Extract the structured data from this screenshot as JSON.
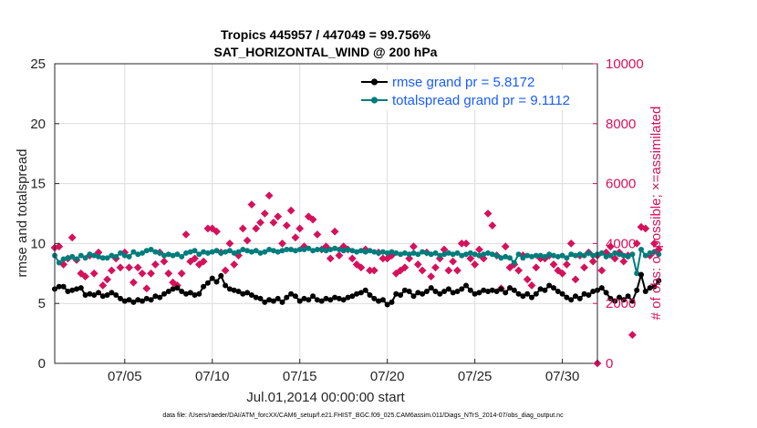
{
  "chart_data": {
    "type": "line",
    "title": "Tropics 445957 / 447049 = 99.756%",
    "subtitle": "SAT_HORIZONTAL_WIND @ 200 hPa",
    "xlabel": "Jul.01,2014 00:00:00 start",
    "ylabel": "rmse and totalspread",
    "ylabel_right": "# of obs: o=possible; ×=assimilated",
    "footnote": "data file: /Users/raeder/DAI/ATM_forcXX/CAM6_setup/f.e21.FHIST_BGC.f09_025.CAM6assim.011/Diags_NTrS_2014-07/obs_diag_output.nc",
    "xlim": [
      1,
      32
    ],
    "ylim": [
      0,
      25
    ],
    "ylim_right": [
      0,
      10000
    ],
    "x_ticks": [
      5,
      10,
      15,
      20,
      25,
      30
    ],
    "x_tick_labels": [
      "07/05",
      "07/10",
      "07/15",
      "07/20",
      "07/25",
      "07/30"
    ],
    "y_ticks": [
      "0",
      "5",
      "10",
      "15",
      "20",
      "25"
    ],
    "y_ticks_right": [
      "0",
      "2000",
      "4000",
      "6000",
      "8000",
      "10000"
    ],
    "series": [
      {
        "name": "rmse grand pr = 5.8172",
        "color": "#000000",
        "axis": "left",
        "x_start": 1,
        "x_step": 0.25,
        "values": [
          6.2,
          6.4,
          6.4,
          6.0,
          6.1,
          6.2,
          6.3,
          5.7,
          5.8,
          5.7,
          5.9,
          5.6,
          5.7,
          5.9,
          5.7,
          5.4,
          5.2,
          5.3,
          5.1,
          5.3,
          5.2,
          5.4,
          5.3,
          5.6,
          5.5,
          5.8,
          6.0,
          6.2,
          6.3,
          6.0,
          5.8,
          5.9,
          5.7,
          5.8,
          6.4,
          6.7,
          7.1,
          6.8,
          7.3,
          6.5,
          6.2,
          6.1,
          6.0,
          5.8,
          5.9,
          5.7,
          5.5,
          5.4,
          5.1,
          5.3,
          5.2,
          5.4,
          5.1,
          5.5,
          5.8,
          5.6,
          5.2,
          5.4,
          5.3,
          5.6,
          5.3,
          5.2,
          5.4,
          5.3,
          5.5,
          5.4,
          5.3,
          5.5,
          5.6,
          5.8,
          5.9,
          6.1,
          5.7,
          5.4,
          5.2,
          5.3,
          4.9,
          5.1,
          5.8,
          5.7,
          6.1,
          6.0,
          5.6,
          5.9,
          5.8,
          6.0,
          6.3,
          6.0,
          5.8,
          6.0,
          6.2,
          5.9,
          6.0,
          6.2,
          6.5,
          6.1,
          5.8,
          5.9,
          6.1,
          6.0,
          6.1,
          6.0,
          6.2,
          5.9,
          6.3,
          6.1,
          5.8,
          5.6,
          5.8,
          5.5,
          5.8,
          6.2,
          6.1,
          6.5,
          6.3,
          6.0,
          5.8,
          5.5,
          5.3,
          5.6,
          5.4,
          5.8,
          5.7,
          6.0,
          6.1,
          6.3,
          5.9,
          5.4,
          5.2,
          5.5,
          5.3,
          5.6,
          5.2,
          6.1,
          7.4,
          6.0,
          6.3,
          6.4,
          6.9
        ]
      },
      {
        "name": "totalspread grand pr = 9.1112",
        "color": "#007c7c",
        "axis": "left",
        "x_start": 1,
        "x_step": 0.25,
        "values": [
          9.0,
          8.4,
          8.7,
          8.8,
          8.9,
          8.7,
          9.0,
          8.8,
          9.1,
          9.0,
          8.9,
          8.8,
          8.8,
          9.0,
          8.9,
          9.2,
          9.0,
          8.9,
          9.3,
          9.1,
          9.2,
          9.4,
          9.5,
          9.3,
          9.2,
          9.0,
          9.1,
          9.0,
          9.1,
          8.9,
          9.2,
          9.3,
          9.4,
          9.1,
          9.3,
          9.2,
          9.3,
          9.4,
          9.2,
          9.3,
          9.4,
          9.2,
          9.3,
          9.5,
          9.4,
          9.3,
          9.4,
          9.2,
          9.3,
          9.5,
          9.4,
          9.3,
          9.4,
          9.5,
          9.5,
          9.4,
          9.5,
          9.5,
          9.6,
          9.4,
          9.5,
          9.5,
          9.4,
          9.5,
          9.6,
          9.5,
          9.4,
          9.5,
          9.4,
          9.3,
          9.4,
          9.3,
          9.4,
          9.3,
          9.2,
          9.3,
          9.2,
          9.3,
          9.2,
          9.1,
          9.2,
          9.1,
          9.2,
          9.1,
          9.3,
          9.2,
          9.1,
          9.2,
          9.0,
          9.1,
          9.2,
          9.1,
          9.2,
          9.0,
          9.1,
          9.2,
          9.1,
          9.0,
          9.1,
          9.2,
          9.1,
          9.0,
          8.8,
          8.9,
          8.8,
          8.4,
          9.1,
          8.8,
          9.0,
          8.9,
          9.0,
          9.0,
          8.9,
          9.1,
          9.0,
          8.9,
          9.0,
          8.8,
          9.1,
          9.0,
          9.1,
          9.0,
          9.2,
          9.0,
          9.1,
          9.2,
          8.9,
          9.0,
          9.2,
          9.1,
          9.0,
          8.9,
          9.1,
          7.5,
          9.5,
          9.0,
          9.2,
          9.3,
          9.1
        ]
      },
      {
        "name": "# of obs",
        "color": "#d6115c",
        "axis": "right",
        "x_start": 1,
        "x_step": 0.25,
        "values": [
          3860,
          3900,
          3300,
          3500,
          4200,
          3450,
          3000,
          2900,
          3600,
          3000,
          3700,
          2600,
          2800,
          3100,
          3500,
          3200,
          3700,
          3200,
          2700,
          3200,
          3000,
          2500,
          3000,
          3300,
          3700,
          3400,
          3000,
          2700,
          2600,
          3000,
          4300,
          3400,
          3500,
          3300,
          3400,
          4500,
          4500,
          4400,
          3700,
          3100,
          4000,
          3300,
          3600,
          4500,
          4100,
          5300,
          4500,
          4700,
          5000,
          5600,
          4700,
          4900,
          4000,
          4600,
          5100,
          4200,
          4500,
          3900,
          4900,
          4800,
          4300,
          3800,
          3900,
          3500,
          4400,
          3600,
          3900,
          3800,
          3500,
          3300,
          3200,
          3800,
          3100,
          3100,
          3700,
          3500,
          3500,
          3600,
          3000,
          3100,
          3200,
          3500,
          3900,
          3300,
          3100,
          3700,
          2900,
          3200,
          3500,
          3800,
          3100,
          3400,
          3100,
          4000,
          4000,
          3500,
          3300,
          3800,
          3500,
          5000,
          4600,
          3600,
          2500,
          3900,
          3200,
          3300,
          3100,
          3600,
          2800,
          2600,
          3200,
          3500,
          3500,
          3600,
          3300,
          3100,
          3000,
          3300,
          4000,
          2800,
          3600,
          3200,
          3700,
          3400,
          3600,
          3100,
          3700,
          3900,
          3500,
          3700,
          3400,
          3600,
          950,
          4000,
          4550,
          4500,
          3600,
          4000,
          3800
        ],
        "extra_points": [
          {
            "x": 32,
            "y": 0
          }
        ]
      }
    ],
    "legend": [
      "rmse grand pr = 5.8172",
      "totalspread grand pr = 9.1112"
    ],
    "legend_position": "top-right"
  }
}
